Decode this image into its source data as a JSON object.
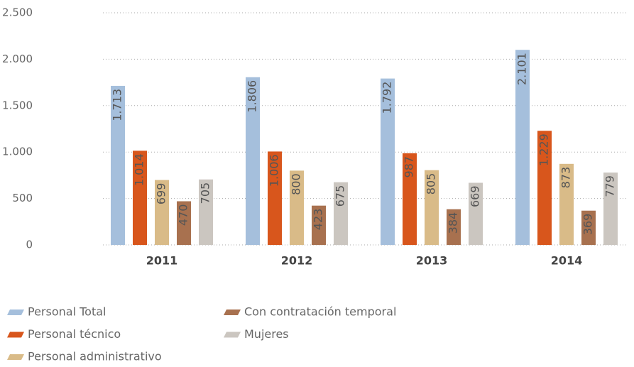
{
  "chart_data": {
    "type": "bar",
    "categories": [
      "2011",
      "2012",
      "2013",
      "2014"
    ],
    "series": [
      {
        "name": "Personal Total",
        "color": "#a5bfdc",
        "values": [
          1713,
          1806,
          1792,
          2101
        ],
        "value_labels": [
          "1.713",
          "1.806",
          "1.792",
          "2.101"
        ]
      },
      {
        "name": "Personal técnico",
        "color": "#d8561c",
        "values": [
          1014,
          1006,
          987,
          1229
        ],
        "value_labels": [
          "1.014",
          "1.006",
          "987",
          "1.229"
        ]
      },
      {
        "name": "Personal administrativo",
        "color": "#d9bb88",
        "values": [
          699,
          800,
          805,
          873
        ],
        "value_labels": [
          "699",
          "800",
          "805",
          "873"
        ]
      },
      {
        "name": "Con contratación temporal",
        "color": "#a8714f",
        "values": [
          470,
          423,
          384,
          369
        ],
        "value_labels": [
          "470",
          "423",
          "384",
          "369"
        ]
      },
      {
        "name": "Mujeres",
        "color": "#cbc6c0",
        "values": [
          705,
          675,
          669,
          779
        ],
        "value_labels": [
          "705",
          "675",
          "669",
          "779"
        ]
      }
    ],
    "ylim": [
      0,
      2500
    ],
    "yticks": [
      0,
      500,
      {
        "value": 1000,
        "label": "1.000"
      },
      {
        "value": 1500,
        "label": "1.500"
      },
      {
        "value": 2000,
        "label": "2.000"
      },
      {
        "value": 2500,
        "label": "2.500"
      }
    ],
    "grid": true
  }
}
